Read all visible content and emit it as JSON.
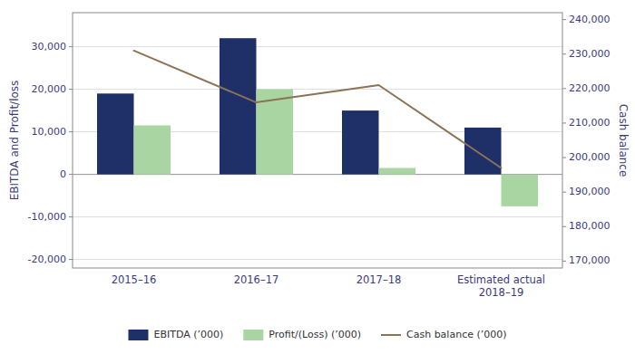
{
  "chart_data": {
    "type": "bar",
    "categories": [
      "2015–16",
      "2016–17",
      "2017–18",
      "Estimated actual\n2018–19"
    ],
    "series": [
      {
        "name": "EBITDA (’000)",
        "color": "#1f3068",
        "values": [
          19000,
          32000,
          15000,
          11000
        ]
      },
      {
        "name": "Profit/(Loss) (’000)",
        "color": "#a8d5a2",
        "values": [
          11500,
          20000,
          1500,
          -7500
        ]
      },
      {
        "name": "Cash balance (’000)",
        "type": "line",
        "axis": "y2",
        "color": "#8b7355",
        "values": [
          231000,
          216000,
          221000,
          197000
        ]
      }
    ],
    "ylabel": "EBITDA and Profit/loss",
    "y2label": "Cash balance",
    "ylim": [
      -22000,
      38000
    ],
    "yticks": [
      {
        "value": -20000,
        "label": "-20,000"
      },
      {
        "value": -10000,
        "label": "-10,000"
      },
      0,
      {
        "value": 10000,
        "label": "10,000"
      },
      {
        "value": 20000,
        "label": "20,000"
      },
      {
        "value": 30000,
        "label": "30,000"
      }
    ],
    "y2lim": [
      168000,
      242000
    ],
    "y2ticks": [
      {
        "value": 170000,
        "label": "170,000"
      },
      {
        "value": 180000,
        "label": "180,000"
      },
      {
        "value": 190000,
        "label": "190,000"
      },
      {
        "value": 200000,
        "label": "200,000"
      },
      {
        "value": 210000,
        "label": "210,000"
      },
      {
        "value": 220000,
        "label": "220,000"
      },
      {
        "value": 230000,
        "label": "230,000"
      },
      {
        "value": 240000,
        "label": "240,000"
      }
    ],
    "grid": true,
    "legend": "bottom"
  }
}
